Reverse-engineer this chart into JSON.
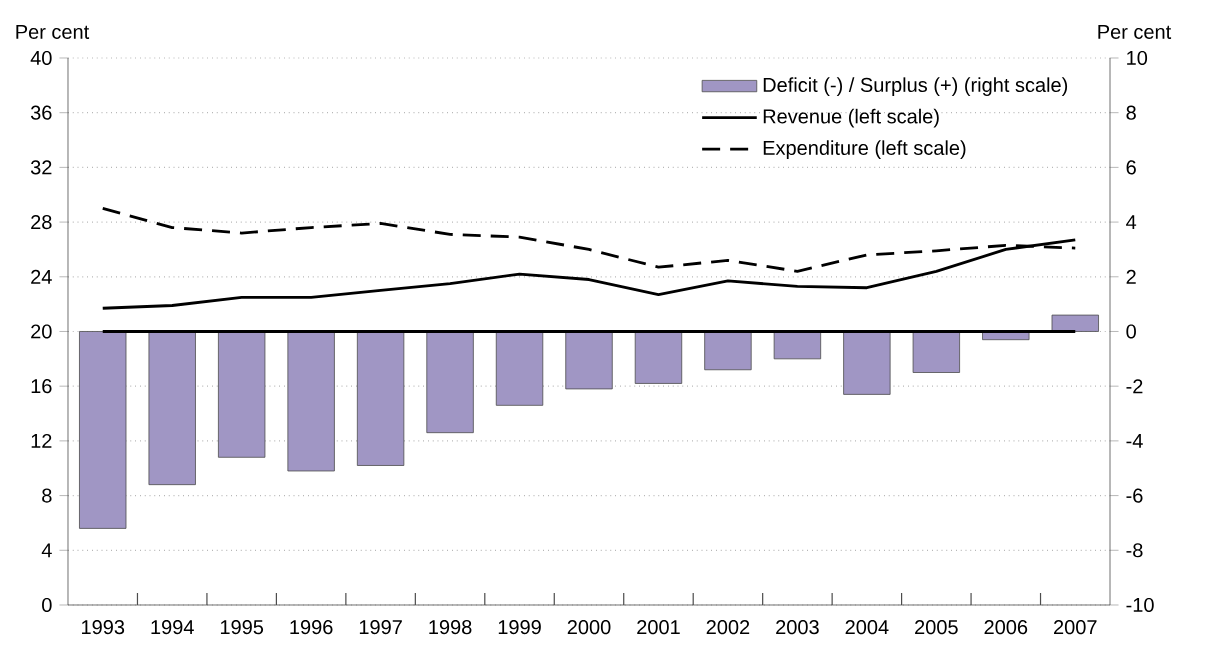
{
  "chart_data": {
    "type": "line",
    "categories": [
      "1993",
      "1994",
      "1995",
      "1996",
      "1997",
      "1998",
      "1999",
      "2000",
      "2001",
      "2002",
      "2003",
      "2004",
      "2005",
      "2006",
      "2007"
    ],
    "series": [
      {
        "name": "Deficit (-) / Surplus (+) (right scale)",
        "type": "bar",
        "axis": "y2",
        "color": "#a096c4",
        "values": [
          -7.2,
          -5.6,
          -4.6,
          -5.1,
          -4.9,
          -3.7,
          -2.7,
          -2.1,
          -1.9,
          -1.4,
          -1.0,
          -2.3,
          -1.5,
          -0.3,
          0.6
        ]
      },
      {
        "name": "Revenue (left scale)",
        "color": "#000000",
        "line_style": "solid",
        "values": [
          21.7,
          21.9,
          22.5,
          22.5,
          23.0,
          23.5,
          24.2,
          23.8,
          22.7,
          23.7,
          23.3,
          23.2,
          24.4,
          26.0,
          26.7
        ]
      },
      {
        "name": "Expenditure (left scale)",
        "color": "#000000",
        "line_style": "dashed",
        "values": [
          29.0,
          27.6,
          27.2,
          27.6,
          27.9,
          27.1,
          26.9,
          26.0,
          24.7,
          25.2,
          24.4,
          25.6,
          25.9,
          26.3,
          26.1
        ]
      }
    ],
    "ylabel": "Per cent",
    "y2label": "Per cent",
    "ylim": [
      0,
      40
    ],
    "yticks": [
      0,
      4,
      8,
      12,
      16,
      20,
      24,
      28,
      32,
      36,
      40
    ],
    "y2lim": [
      -10,
      10
    ],
    "y2ticks": [
      -10,
      -8,
      -6,
      -4,
      -2,
      0,
      2,
      4,
      6,
      8,
      10
    ],
    "ref_lines": [
      {
        "axis": "y2",
        "value": 0,
        "color": "#000000"
      }
    ],
    "grid": "y",
    "legend": "top right"
  }
}
